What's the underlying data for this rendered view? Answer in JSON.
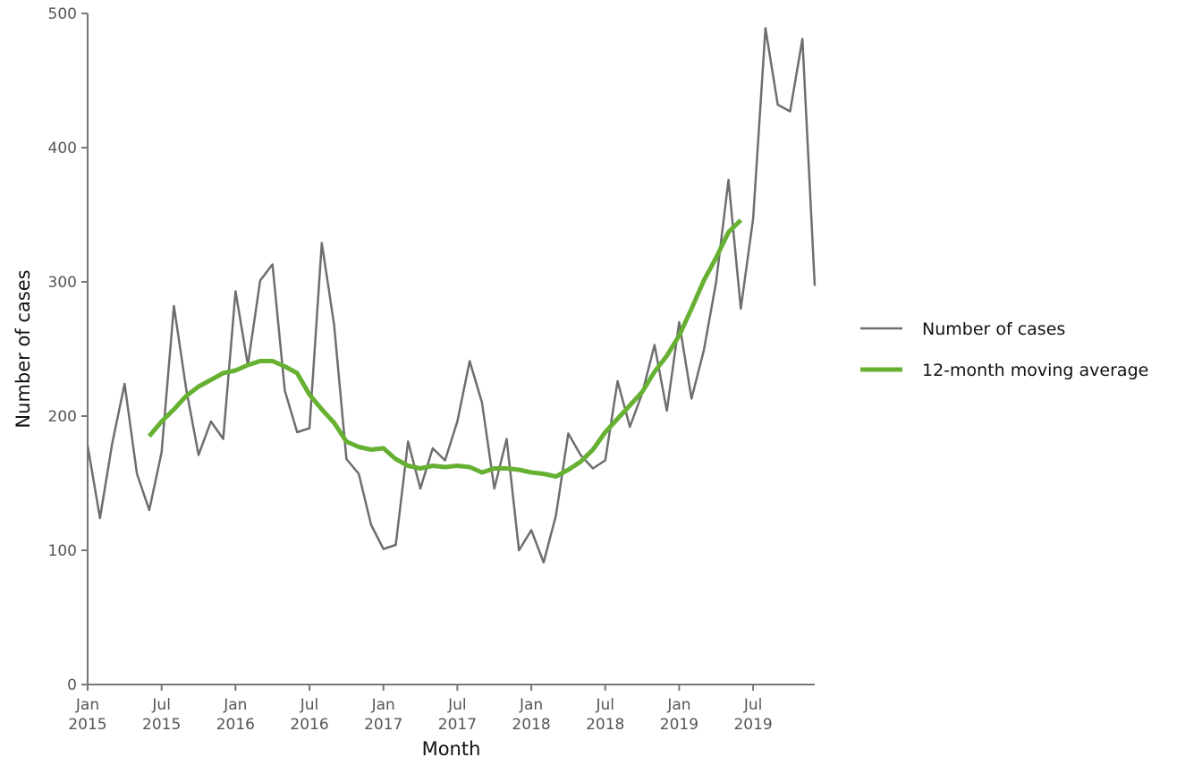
{
  "chart_data": {
    "type": "line",
    "xlabel": "Month",
    "ylabel": "Number of cases",
    "ylim": [
      0,
      500
    ],
    "yticks": [
      0,
      100,
      200,
      300,
      400,
      500
    ],
    "x_start": "2015-01",
    "x_end": "2019-12",
    "xticks": [
      {
        "month": "2015-01",
        "line1": "Jan",
        "line2": "2015"
      },
      {
        "month": "2015-07",
        "line1": "Jul",
        "line2": "2015"
      },
      {
        "month": "2016-01",
        "line1": "Jan",
        "line2": "2016"
      },
      {
        "month": "2016-07",
        "line1": "Jul",
        "line2": "2016"
      },
      {
        "month": "2017-01",
        "line1": "Jan",
        "line2": "2017"
      },
      {
        "month": "2017-07",
        "line1": "Jul",
        "line2": "2017"
      },
      {
        "month": "2018-01",
        "line1": "Jan",
        "line2": "2018"
      },
      {
        "month": "2018-07",
        "line1": "Jul",
        "line2": "2018"
      },
      {
        "month": "2019-01",
        "line1": "Jan",
        "line2": "2019"
      },
      {
        "month": "2019-07",
        "line1": "Jul",
        "line2": "2019"
      }
    ],
    "legend_position": "right",
    "grid": false,
    "series": [
      {
        "name": "Number of cases",
        "color": "#6e6e6e",
        "points": [
          {
            "x": "2015-01",
            "y": 178
          },
          {
            "x": "2015-02",
            "y": 124
          },
          {
            "x": "2015-03",
            "y": 180
          },
          {
            "x": "2015-04",
            "y": 224
          },
          {
            "x": "2015-05",
            "y": 157
          },
          {
            "x": "2015-06",
            "y": 130
          },
          {
            "x": "2015-07",
            "y": 173
          },
          {
            "x": "2015-08",
            "y": 282
          },
          {
            "x": "2015-09",
            "y": 220
          },
          {
            "x": "2015-10",
            "y": 171
          },
          {
            "x": "2015-11",
            "y": 196
          },
          {
            "x": "2015-12",
            "y": 183
          },
          {
            "x": "2016-01",
            "y": 293
          },
          {
            "x": "2016-02",
            "y": 238
          },
          {
            "x": "2016-03",
            "y": 301
          },
          {
            "x": "2016-04",
            "y": 313
          },
          {
            "x": "2016-05",
            "y": 219
          },
          {
            "x": "2016-06",
            "y": 188
          },
          {
            "x": "2016-07",
            "y": 191
          },
          {
            "x": "2016-08",
            "y": 329
          },
          {
            "x": "2016-09",
            "y": 268
          },
          {
            "x": "2016-10",
            "y": 168
          },
          {
            "x": "2016-11",
            "y": 157
          },
          {
            "x": "2016-12",
            "y": 119
          },
          {
            "x": "2017-01",
            "y": 101
          },
          {
            "x": "2017-02",
            "y": 104
          },
          {
            "x": "2017-03",
            "y": 181
          },
          {
            "x": "2017-04",
            "y": 146
          },
          {
            "x": "2017-05",
            "y": 176
          },
          {
            "x": "2017-06",
            "y": 167
          },
          {
            "x": "2017-07",
            "y": 196
          },
          {
            "x": "2017-08",
            "y": 241
          },
          {
            "x": "2017-09",
            "y": 210
          },
          {
            "x": "2017-10",
            "y": 146
          },
          {
            "x": "2017-11",
            "y": 183
          },
          {
            "x": "2017-12",
            "y": 100
          },
          {
            "x": "2018-01",
            "y": 115
          },
          {
            "x": "2018-02",
            "y": 91
          },
          {
            "x": "2018-03",
            "y": 126
          },
          {
            "x": "2018-04",
            "y": 187
          },
          {
            "x": "2018-05",
            "y": 171
          },
          {
            "x": "2018-06",
            "y": 161
          },
          {
            "x": "2018-07",
            "y": 167
          },
          {
            "x": "2018-08",
            "y": 226
          },
          {
            "x": "2018-09",
            "y": 192
          },
          {
            "x": "2018-10",
            "y": 217
          },
          {
            "x": "2018-11",
            "y": 253
          },
          {
            "x": "2018-12",
            "y": 204
          },
          {
            "x": "2019-01",
            "y": 270
          },
          {
            "x": "2019-02",
            "y": 213
          },
          {
            "x": "2019-03",
            "y": 249
          },
          {
            "x": "2019-04",
            "y": 300
          },
          {
            "x": "2019-05",
            "y": 376
          },
          {
            "x": "2019-06",
            "y": 280
          },
          {
            "x": "2019-07",
            "y": 347
          },
          {
            "x": "2019-08",
            "y": 489
          },
          {
            "x": "2019-09",
            "y": 432
          },
          {
            "x": "2019-10",
            "y": 427
          },
          {
            "x": "2019-11",
            "y": 481
          },
          {
            "x": "2019-12",
            "y": 297
          }
        ]
      },
      {
        "name": "12-month moving average",
        "color": "#66b032",
        "points": [
          {
            "x": "2015-06",
            "y": 185
          },
          {
            "x": "2015-07",
            "y": 196
          },
          {
            "x": "2015-08",
            "y": 205
          },
          {
            "x": "2015-09",
            "y": 215
          },
          {
            "x": "2015-10",
            "y": 222
          },
          {
            "x": "2015-11",
            "y": 227
          },
          {
            "x": "2015-12",
            "y": 232
          },
          {
            "x": "2016-01",
            "y": 234
          },
          {
            "x": "2016-02",
            "y": 238
          },
          {
            "x": "2016-03",
            "y": 241
          },
          {
            "x": "2016-04",
            "y": 241
          },
          {
            "x": "2016-05",
            "y": 237
          },
          {
            "x": "2016-06",
            "y": 232
          },
          {
            "x": "2016-07",
            "y": 216
          },
          {
            "x": "2016-08",
            "y": 205
          },
          {
            "x": "2016-09",
            "y": 195
          },
          {
            "x": "2016-10",
            "y": 181
          },
          {
            "x": "2016-11",
            "y": 177
          },
          {
            "x": "2016-12",
            "y": 175
          },
          {
            "x": "2017-01",
            "y": 176
          },
          {
            "x": "2017-02",
            "y": 168
          },
          {
            "x": "2017-03",
            "y": 163
          },
          {
            "x": "2017-04",
            "y": 161
          },
          {
            "x": "2017-05",
            "y": 163
          },
          {
            "x": "2017-06",
            "y": 162
          },
          {
            "x": "2017-07",
            "y": 163
          },
          {
            "x": "2017-08",
            "y": 162
          },
          {
            "x": "2017-09",
            "y": 158
          },
          {
            "x": "2017-10",
            "y": 161
          },
          {
            "x": "2017-11",
            "y": 161
          },
          {
            "x": "2017-12",
            "y": 160
          },
          {
            "x": "2018-01",
            "y": 158
          },
          {
            "x": "2018-02",
            "y": 157
          },
          {
            "x": "2018-03",
            "y": 155
          },
          {
            "x": "2018-04",
            "y": 160
          },
          {
            "x": "2018-05",
            "y": 166
          },
          {
            "x": "2018-06",
            "y": 175
          },
          {
            "x": "2018-07",
            "y": 188
          },
          {
            "x": "2018-08",
            "y": 198
          },
          {
            "x": "2018-09",
            "y": 208
          },
          {
            "x": "2018-10",
            "y": 218
          },
          {
            "x": "2018-11",
            "y": 233
          },
          {
            "x": "2018-12",
            "y": 245
          },
          {
            "x": "2019-01",
            "y": 260
          },
          {
            "x": "2019-02",
            "y": 280
          },
          {
            "x": "2019-03",
            "y": 301
          },
          {
            "x": "2019-04",
            "y": 318
          },
          {
            "x": "2019-05",
            "y": 337
          },
          {
            "x": "2019-06",
            "y": 346
          }
        ]
      }
    ]
  }
}
